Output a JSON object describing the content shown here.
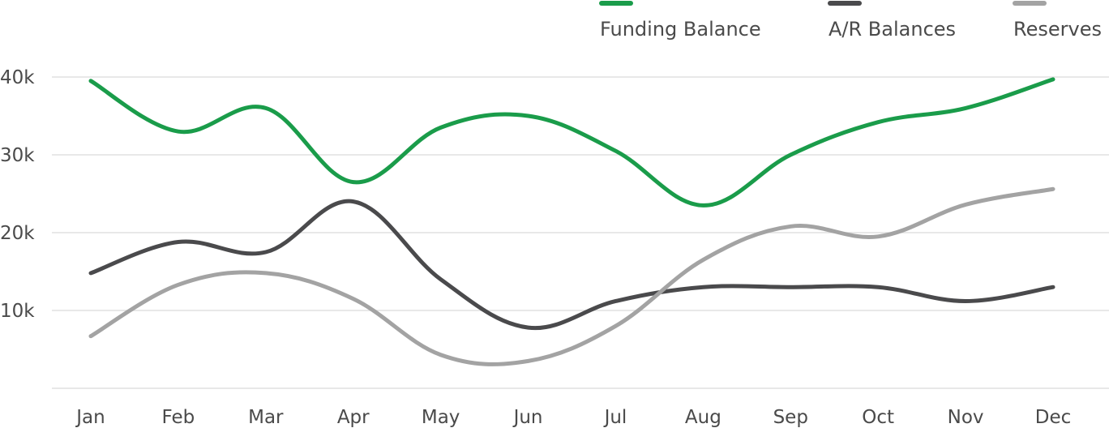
{
  "chart_data": {
    "type": "line",
    "title": "",
    "xlabel": "",
    "ylabel": "",
    "categories": [
      "Jan",
      "Feb",
      "Mar",
      "Apr",
      "May",
      "Jun",
      "Jul",
      "Aug",
      "Sep",
      "Oct",
      "Nov",
      "Dec"
    ],
    "ylim": [
      0,
      40000
    ],
    "yticks": [
      10000,
      20000,
      30000,
      40000
    ],
    "ytick_labels": [
      "10k",
      "20k",
      "30k",
      "40k"
    ],
    "grid": true,
    "legend_position": "top-right",
    "series": [
      {
        "name": "Funding Balance",
        "color": "#1a9c4a",
        "values": [
          39500,
          33000,
          36000,
          26500,
          33500,
          35000,
          30500,
          23500,
          30000,
          34200,
          36000,
          39700
        ]
      },
      {
        "name": "A/R Balances",
        "color": "#4a4a4c",
        "values": [
          14800,
          18800,
          17500,
          24000,
          14000,
          7800,
          11200,
          13000,
          13000,
          13000,
          11200,
          13000
        ]
      },
      {
        "name": "Reserves",
        "color": "#a3a3a3",
        "values": [
          6700,
          13300,
          14800,
          11500,
          4300,
          3500,
          8000,
          16500,
          20800,
          19500,
          23600,
          25600
        ]
      }
    ]
  }
}
